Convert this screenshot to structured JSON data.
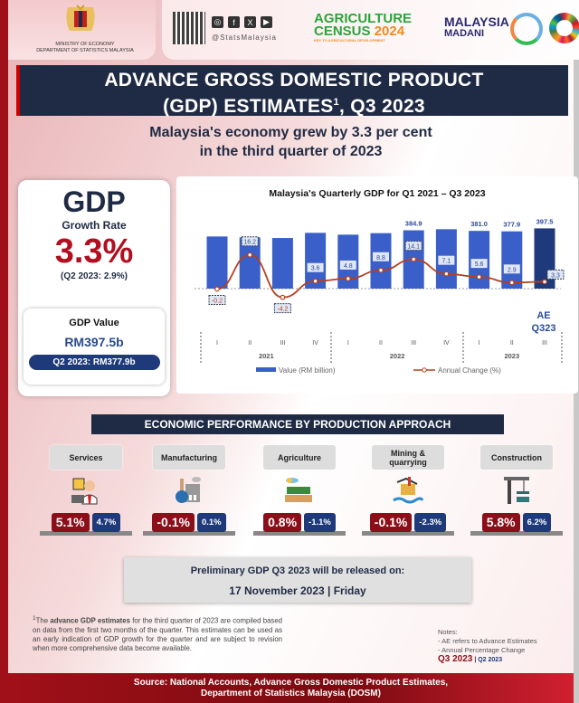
{
  "header": {
    "ministry": [
      "MINISTRY OF ECONOMY",
      "DEPARTMENT OF STATISTICS MALAYSIA"
    ],
    "social_handle": "@StatsMalaysia",
    "social_icons": [
      "instagram-icon",
      "facebook-icon",
      "x-icon",
      "youtube-icon"
    ],
    "census": {
      "line1": "AGRICULTURE",
      "line2": "CENSUS",
      "year": "2024",
      "tagline": "KEY TO AGRICULTURAL DEVELOPMENT"
    },
    "madani": {
      "line1": "MALAYSIA",
      "line2": "MADANI"
    }
  },
  "title": {
    "line1": "ADVANCE GROSS DOMESTIC PRODUCT",
    "line2": "(GDP) ESTIMATES",
    "sup": "1",
    "line2_end": ", Q3 2023"
  },
  "subtitle": {
    "line1": "Malaysia's economy grew by 3.3 per cent",
    "line2": "in the third quarter of 2023"
  },
  "gdp_card": {
    "heading": "GDP",
    "growth_label": "Growth Rate",
    "growth_value": "3.3%",
    "growth_prev": "(Q2 2023: 2.9%)",
    "value_label": "GDP Value",
    "value": "RM397.5b",
    "value_prev": "Q2 2023: RM377.9b"
  },
  "chart_data": {
    "type": "bar+line",
    "title": "Malaysia's Quarterly GDP for Q1 2021 – Q3 2023",
    "categories": [
      "I",
      "II",
      "III",
      "IV",
      "I",
      "II",
      "III",
      "IV",
      "I",
      "II",
      "III"
    ],
    "years": [
      {
        "label": "2021",
        "span": 4
      },
      {
        "label": "2022",
        "span": 4
      },
      {
        "label": "2023",
        "span": 3
      }
    ],
    "series": [
      {
        "name": "Value (RM billion)",
        "type": "bar",
        "color": "#3a5fc8",
        "highlight_color": "#1f3a7a",
        "values": [
          344,
          338,
          334,
          368,
          356,
          366,
          384.9,
          392,
          381.0,
          377.9,
          397.5
        ],
        "labels": [
          "",
          "",
          "",
          "",
          "",
          "",
          "384.9",
          "",
          "381.0",
          "377.9",
          "397.5"
        ]
      },
      {
        "name": "Annual Change (%)",
        "type": "line",
        "color": "#b5401e",
        "values": [
          -0.2,
          16.2,
          -4.2,
          3.6,
          4.8,
          8.8,
          14.1,
          7.1,
          5.6,
          2.9,
          3.3
        ],
        "labels": [
          "-0.2",
          "16.2",
          "-4.2",
          "3.6",
          "4.8",
          "8.8",
          "14.1",
          "7.1",
          "5.6",
          "2.9",
          "3.3"
        ]
      }
    ],
    "annotation": [
      "AE",
      "Q323"
    ],
    "legend": "bottom"
  },
  "section_title": "ECONOMIC PERFORMANCE BY PRODUCTION APPROACH",
  "sectors": [
    {
      "name": "Services",
      "q3": "5.1%",
      "q2": "4.7%",
      "icon": "customer-service-icon"
    },
    {
      "name": "Manufacturing",
      "q3": "-0.1%",
      "q2": "0.1%",
      "icon": "factory-icon"
    },
    {
      "name": "Agriculture",
      "q3": "0.8%",
      "q2": "-1.1%",
      "icon": "farm-icon"
    },
    {
      "name": "Mining & quarrying",
      "q3": "-0.1%",
      "q2": "-2.3%",
      "icon": "oil-rig-icon"
    },
    {
      "name": "Construction",
      "q3": "5.8%",
      "q2": "6.2%",
      "icon": "crane-icon"
    }
  ],
  "release": {
    "text": "Preliminary GDP Q3 2023 will be released on:",
    "date": "17 November 2023 | Friday"
  },
  "footnote": {
    "sup": "1",
    "pre": "The ",
    "bold": "advance GDP estimates",
    "rest": " for the third quarter of 2023 are compiled based on data from the first two months of the quarter. This estimates can be used as an early indication of GDP growth for the quarter and are subject to revision when more comprehensive data become available."
  },
  "notes": {
    "heading": "Notes:",
    "items": [
      "- AE refers to Advance Estimates",
      "- Annual Percentage Change"
    ],
    "q3": "Q3 2023",
    "sep": " | ",
    "q2": "Q2 2023"
  },
  "source": {
    "line1": "Source: National Accounts, Advance Gross Domestic Product Estimates,",
    "line2": "Department of Statistics Malaysia (DOSM)"
  },
  "colors": {
    "navy": "#1f2a44",
    "red": "#b01020",
    "bar": "#3a5fc8",
    "line": "#b5401e"
  }
}
